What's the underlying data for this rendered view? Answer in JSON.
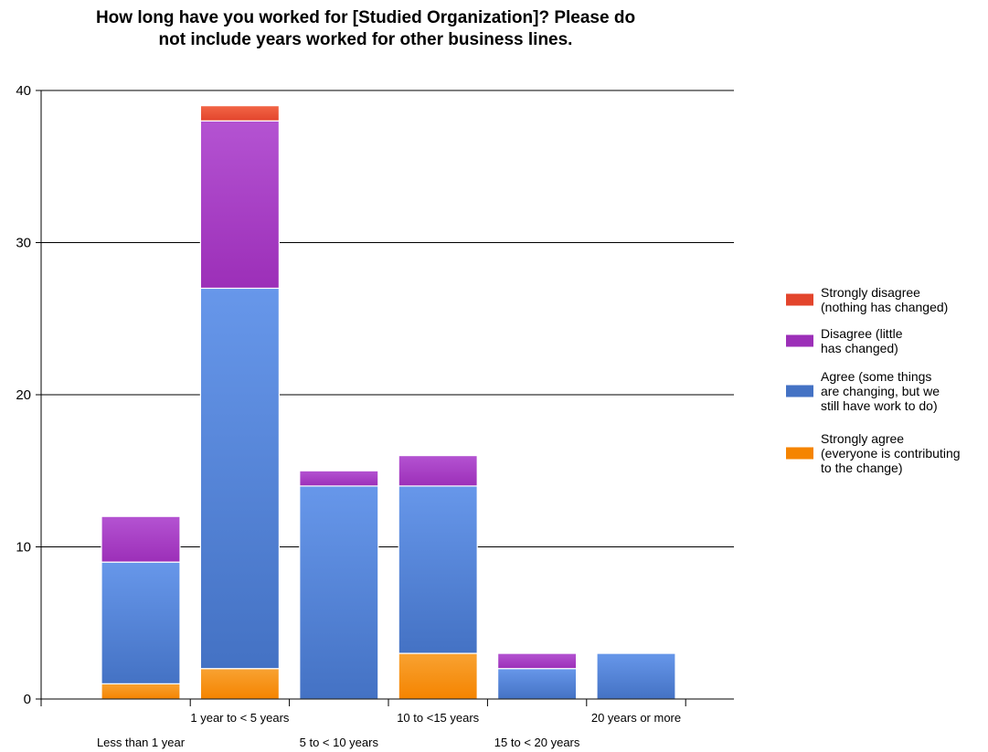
{
  "chart_data": {
    "type": "bar",
    "stacked": true,
    "title": "How long have you worked for [Studied Organization]?  Please do not include years worked for other business lines.",
    "title_lines": [
      "How long have you worked for [Studied Organization]?  Please do",
      "not include years worked for other business lines."
    ],
    "xlabel": "",
    "ylabel": "",
    "ylim": [
      0,
      40
    ],
    "yticks": [
      0,
      10,
      20,
      30,
      40
    ],
    "grid": true,
    "legend_position": "right",
    "categories": [
      "Less than 1 year",
      "1 year to < 5 years",
      "5 to < 10 years",
      "10 to <15 years",
      "15 to < 20 years",
      "20 years or more"
    ],
    "series": [
      {
        "name": "Strongly agree (everyone is contributing to the change)",
        "legend_lines": [
          "Strongly agree",
          "(everyone is contributing",
          "to the change)"
        ],
        "color": "#f58400",
        "color_light": "#f8a232",
        "values": [
          1,
          2,
          0,
          3,
          0,
          0
        ]
      },
      {
        "name": "Agree (some things are changing, but we still have work to do)",
        "legend_lines": [
          "Agree (some things",
          "are changing, but we",
          "still have work to do)"
        ],
        "color": "#4472c4",
        "color_light": "#6797ea",
        "values": [
          8,
          25,
          14,
          11,
          2,
          3
        ]
      },
      {
        "name": "Disagree (little has changed)",
        "legend_lines": [
          "Disagree (little",
          "has changed)"
        ],
        "color": "#9c2fb8",
        "color_light": "#b453d2",
        "values": [
          3,
          11,
          1,
          2,
          1,
          0
        ]
      },
      {
        "name": "Strongly disagree (nothing has changed)",
        "legend_lines": [
          "Strongly disagree",
          "(nothing has changed)"
        ],
        "color": "#e3452c",
        "color_light": "#f26546",
        "values": [
          0,
          1,
          0,
          0,
          0,
          0
        ]
      }
    ],
    "legend_order": [
      3,
      2,
      1,
      0
    ]
  }
}
